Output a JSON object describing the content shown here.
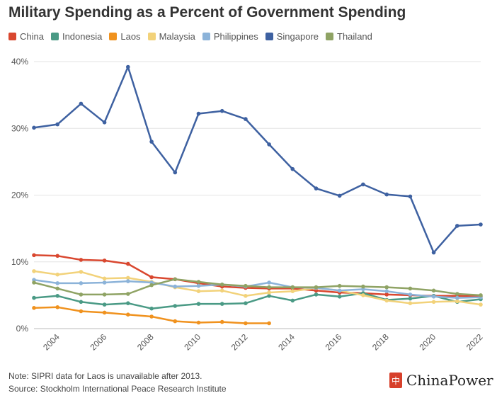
{
  "title": "Military Spending as a Percent of Government Spending",
  "notes": {
    "note": "Note: SIPRI data for Laos is unavailable after 2013.",
    "source": "Source: Stockholm International Peace Research Institute"
  },
  "brand": {
    "name": "ChinaPower",
    "logo_glyph": "中"
  },
  "chart_data": {
    "type": "line",
    "title": "Military Spending as a Percent of Government Spending",
    "x": [
      2003,
      2004,
      2005,
      2006,
      2007,
      2008,
      2009,
      2010,
      2011,
      2012,
      2013,
      2014,
      2015,
      2016,
      2017,
      2018,
      2019,
      2020,
      2021,
      2022
    ],
    "xticks": [
      "2004",
      "2006",
      "2008",
      "2010",
      "2012",
      "2014",
      "2016",
      "2018",
      "2020",
      "2022"
    ],
    "xtick_values": [
      2004,
      2006,
      2008,
      2010,
      2012,
      2014,
      2016,
      2018,
      2020,
      2022
    ],
    "yticks": [
      "0%",
      "10%",
      "20%",
      "30%",
      "40%"
    ],
    "ytick_values": [
      0,
      10,
      20,
      30,
      40
    ],
    "ylim": [
      0,
      40
    ],
    "xlim": [
      2003,
      2022
    ],
    "grid": true,
    "legend_position": "top-left",
    "series": [
      {
        "name": "China",
        "color": "#d9472f",
        "values": [
          11.0,
          10.9,
          10.3,
          10.2,
          9.7,
          7.7,
          7.4,
          6.8,
          6.3,
          6.1,
          6.0,
          6.0,
          5.7,
          5.4,
          5.3,
          5.1,
          5.0,
          4.9,
          4.9,
          4.8
        ]
      },
      {
        "name": "Indonesia",
        "color": "#4a9a85",
        "values": [
          4.6,
          4.9,
          4.0,
          3.6,
          3.8,
          3.0,
          3.4,
          3.7,
          3.7,
          3.8,
          4.9,
          4.2,
          5.1,
          4.8,
          5.3,
          4.3,
          4.5,
          4.9,
          4.0,
          4.4
        ]
      },
      {
        "name": "Laos",
        "color": "#f0921e",
        "values": [
          3.1,
          3.2,
          2.6,
          2.4,
          2.1,
          1.8,
          1.1,
          0.9,
          1.0,
          0.8,
          0.8,
          null,
          null,
          null,
          null,
          null,
          null,
          null,
          null,
          null
        ]
      },
      {
        "name": "Malaysia",
        "color": "#f2d27a",
        "values": [
          8.6,
          8.1,
          8.5,
          7.5,
          7.6,
          7.0,
          6.2,
          5.6,
          5.7,
          4.9,
          5.4,
          5.6,
          6.1,
          5.7,
          5.0,
          4.2,
          3.8,
          4.0,
          4.1,
          3.6
        ]
      },
      {
        "name": "Philippines",
        "color": "#8cb3d9",
        "values": [
          7.3,
          6.8,
          6.8,
          6.9,
          7.1,
          6.9,
          6.3,
          6.4,
          6.6,
          6.3,
          6.9,
          6.2,
          6.1,
          5.7,
          5.9,
          5.6,
          5.1,
          4.8,
          4.6,
          4.7
        ]
      },
      {
        "name": "Singapore",
        "color": "#3e61a1",
        "values": [
          30.1,
          30.6,
          33.7,
          30.9,
          39.2,
          28.0,
          23.4,
          32.2,
          32.6,
          31.4,
          27.6,
          23.9,
          21.0,
          19.9,
          21.6,
          20.1,
          19.8,
          11.4,
          15.4,
          15.6
        ]
      },
      {
        "name": "Thailand",
        "color": "#8fa364",
        "values": [
          6.9,
          6.0,
          5.1,
          5.1,
          5.2,
          6.5,
          7.4,
          7.0,
          6.6,
          6.4,
          6.2,
          6.2,
          6.2,
          6.4,
          6.3,
          6.2,
          6.0,
          5.7,
          5.2,
          5.0
        ]
      }
    ]
  }
}
